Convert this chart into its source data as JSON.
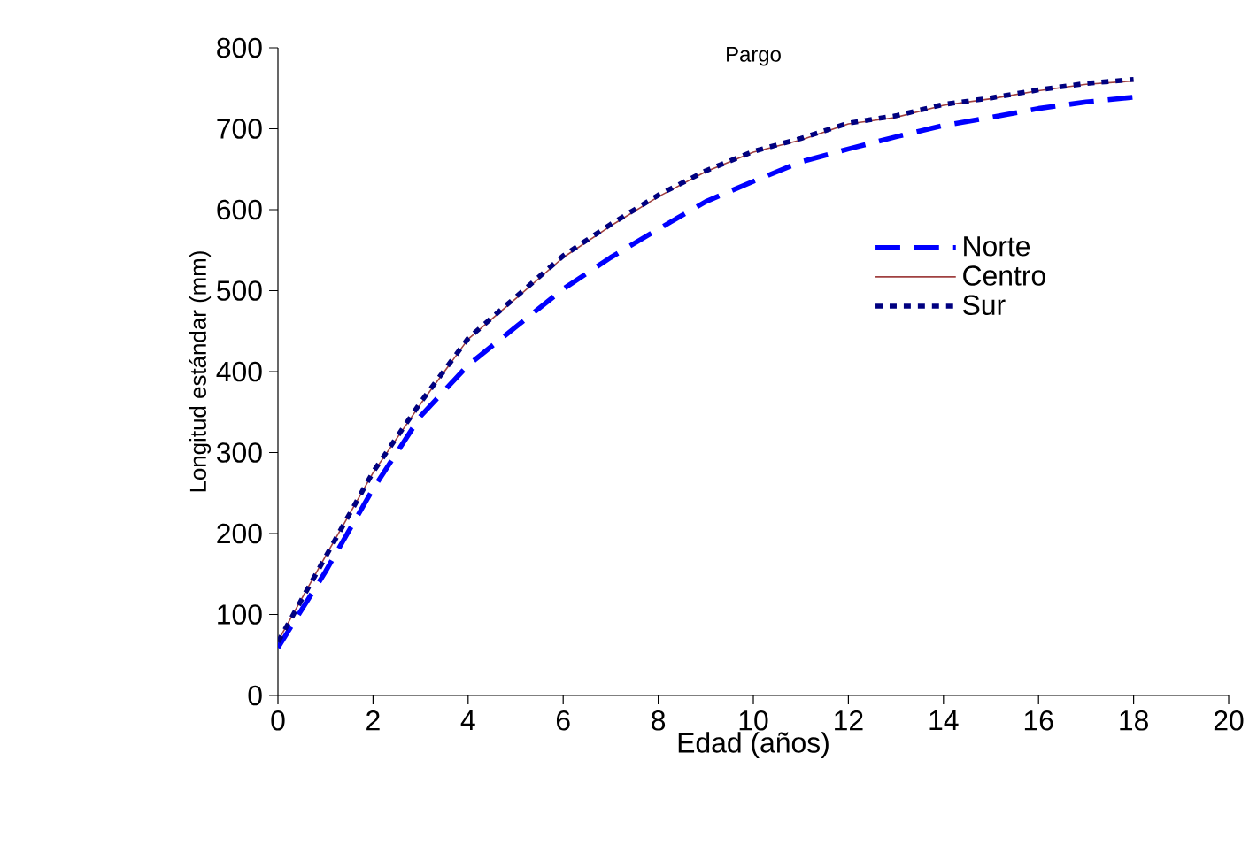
{
  "chart_data": {
    "type": "line",
    "title": "Pargo",
    "xlabel": "Edad (años)",
    "ylabel": "Longitud estándar (mm)",
    "x": [
      0,
      1,
      2,
      3,
      4,
      5,
      6,
      7,
      8,
      9,
      10,
      11,
      12,
      13,
      14,
      15,
      16,
      17,
      18
    ],
    "series": [
      {
        "name": "Norte",
        "color": "#0000ff",
        "line_style": "dashed",
        "values": [
          59,
          153,
          255,
          345,
          408,
          455,
          502,
          541,
          576,
          610,
          635,
          659,
          675,
          690,
          704,
          714,
          725,
          733,
          739
        ]
      },
      {
        "name": "Centro",
        "color": "#a04040",
        "line_style": "solid",
        "values": [
          67,
          172,
          275,
          360,
          440,
          490,
          541,
          580,
          616,
          647,
          671,
          686,
          706,
          714,
          729,
          737,
          747,
          755,
          759
        ]
      },
      {
        "name": "Sur",
        "color": "#000080",
        "line_style": "dotted",
        "values": [
          66,
          171,
          276,
          362,
          441,
          492,
          543,
          582,
          618,
          648,
          672,
          688,
          707,
          716,
          730,
          738,
          748,
          756,
          761
        ]
      }
    ],
    "xlim": [
      0,
      20
    ],
    "xticks": [
      0,
      2,
      4,
      6,
      8,
      10,
      12,
      14,
      16,
      18,
      20
    ],
    "ylim": [
      0,
      800
    ],
    "yticks": [
      0,
      100,
      200,
      300,
      400,
      500,
      600,
      700,
      800
    ],
    "grid": false,
    "legend": "right",
    "marker": "none"
  }
}
